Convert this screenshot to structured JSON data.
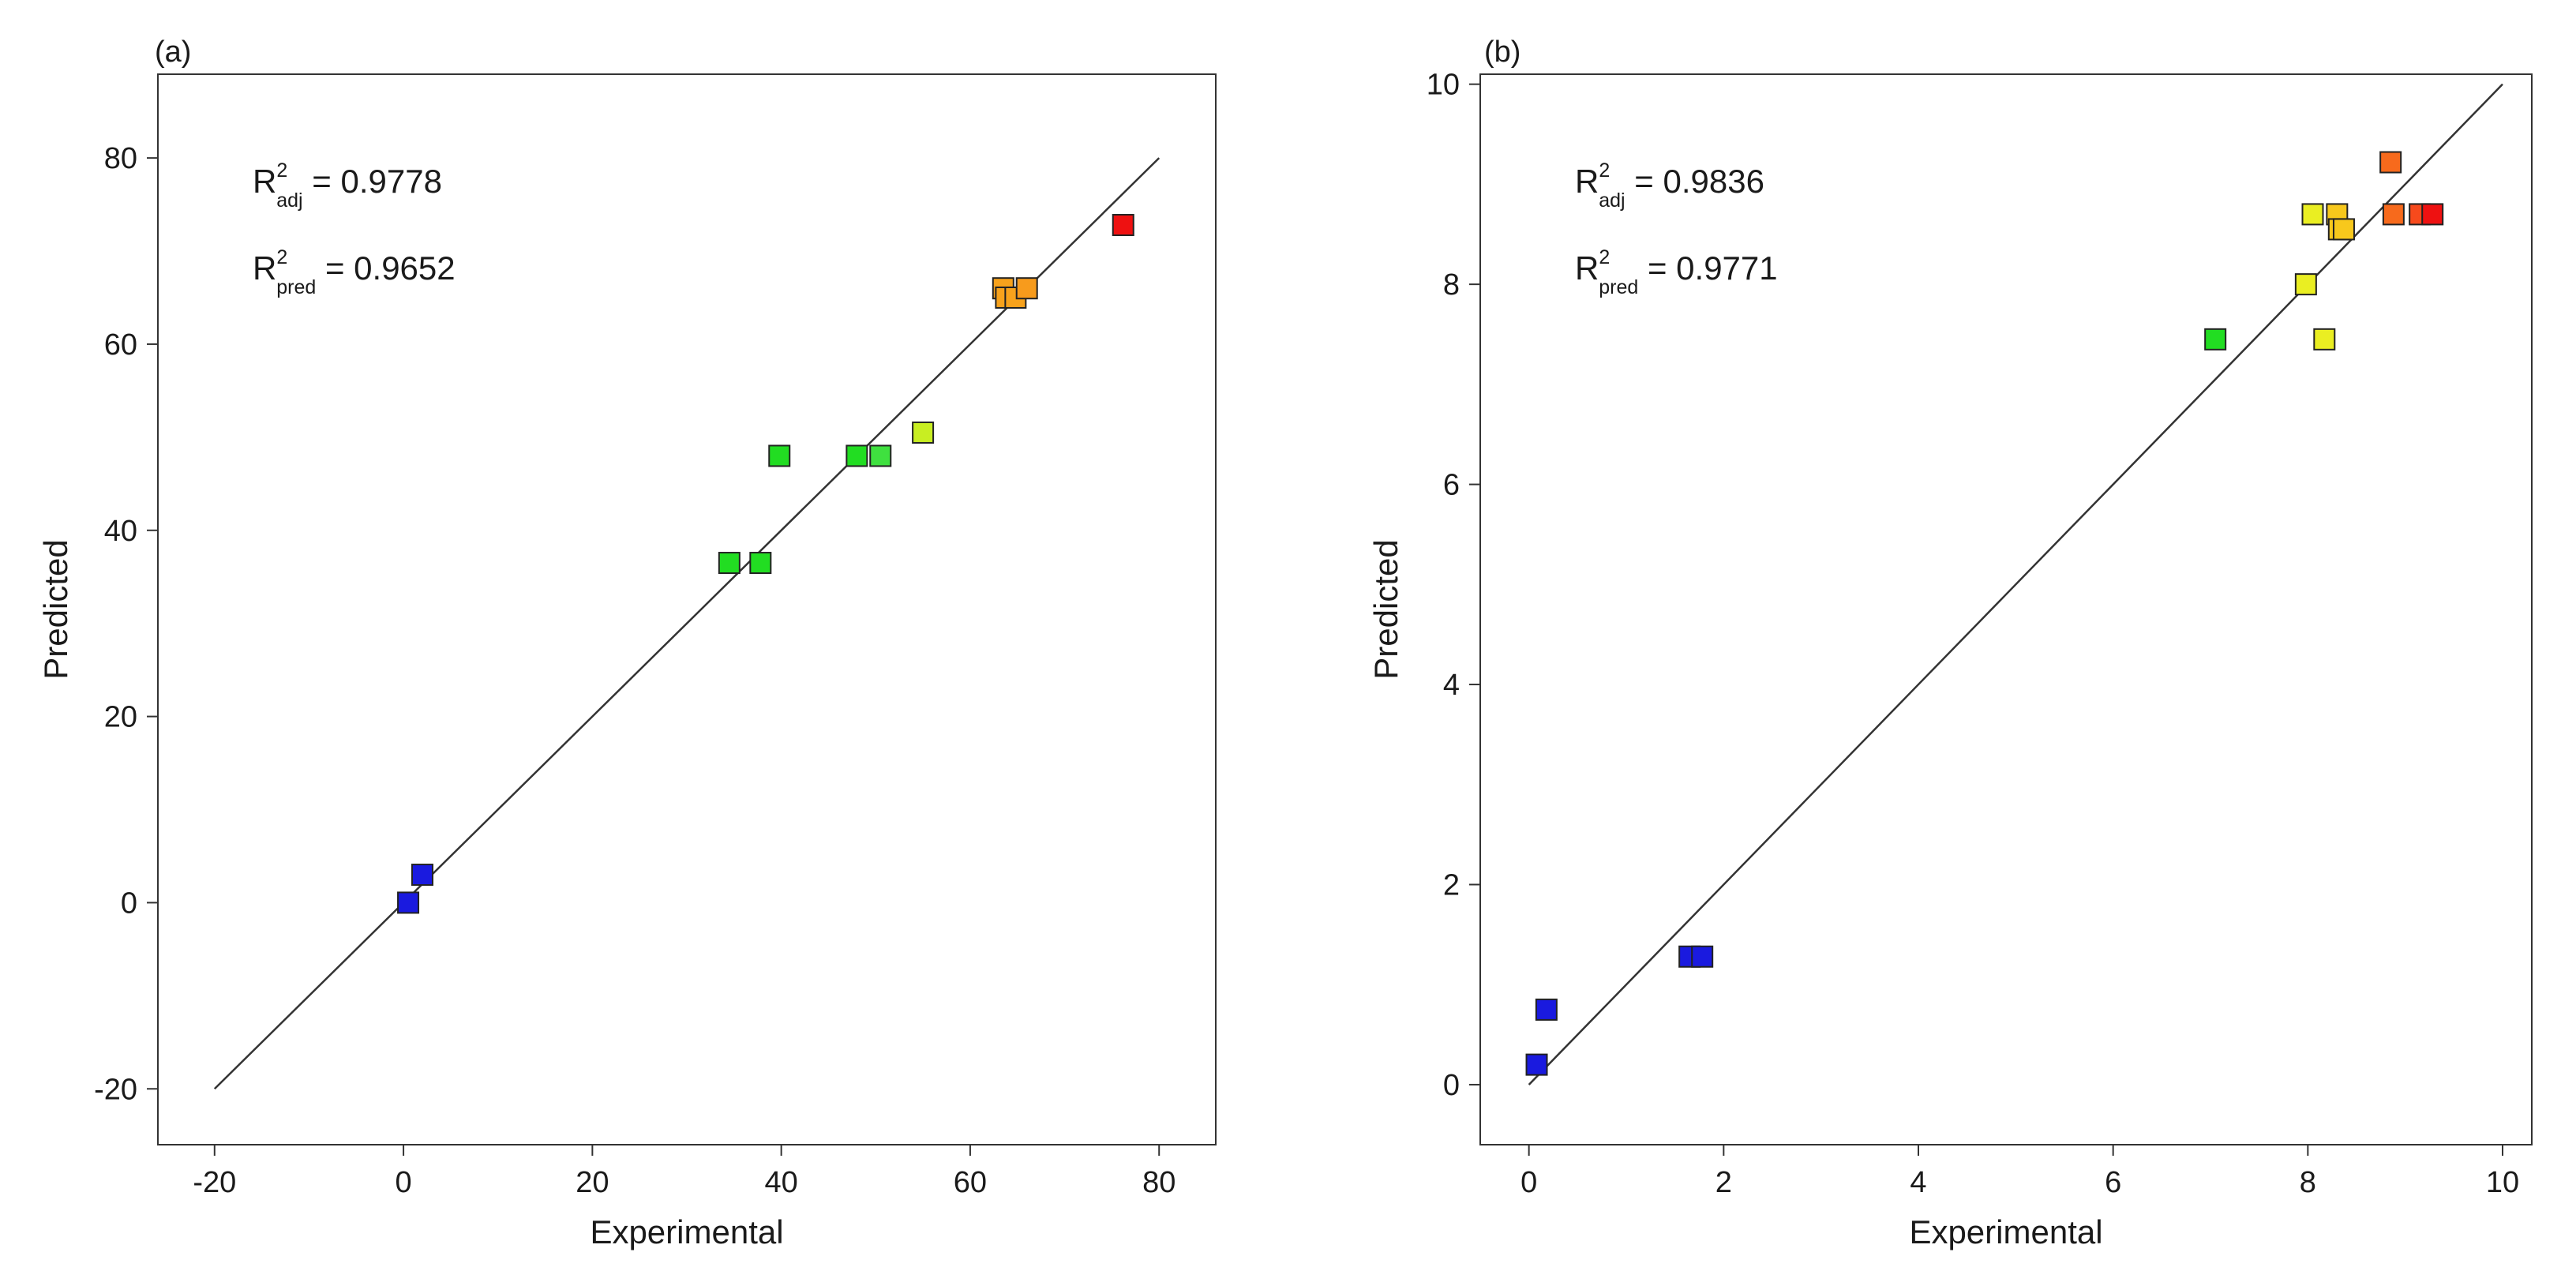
{
  "chart_data": [
    {
      "type": "scatter",
      "panel_label": "(a)",
      "xlabel": "Experimental",
      "ylabel": "Predicted",
      "xlim": [
        -26,
        86
      ],
      "ylim": [
        -26,
        89
      ],
      "xticks": [
        -20,
        0,
        20,
        40,
        60,
        80
      ],
      "yticks": [
        -20,
        0,
        20,
        40,
        60,
        80
      ],
      "grid": false,
      "diagonal_line": [
        [
          -20,
          -20
        ],
        [
          80,
          80
        ]
      ],
      "annotations": [
        {
          "base": "R",
          "sup": "2",
          "sub": "adj",
          "value": " = 0.9778"
        },
        {
          "base": "R",
          "sup": "2",
          "sub": "pred",
          "value": " = 0.9652"
        }
      ],
      "points": [
        {
          "x": 0.5,
          "y": 0.0,
          "color": "#1a1adf"
        },
        {
          "x": 2.0,
          "y": 3.0,
          "color": "#1a1adf"
        },
        {
          "x": 34.5,
          "y": 36.5,
          "color": "#22dd22"
        },
        {
          "x": 37.8,
          "y": 36.5,
          "color": "#22dd22"
        },
        {
          "x": 39.8,
          "y": 48.0,
          "color": "#22dd22"
        },
        {
          "x": 48.0,
          "y": 48.0,
          "color": "#22dd22"
        },
        {
          "x": 50.5,
          "y": 48.0,
          "color": "#3fe03f"
        },
        {
          "x": 55.0,
          "y": 50.5,
          "color": "#c8ee22"
        },
        {
          "x": 63.5,
          "y": 66.0,
          "color": "#f7a21c"
        },
        {
          "x": 63.8,
          "y": 65.0,
          "color": "#f7a21c"
        },
        {
          "x": 64.8,
          "y": 65.0,
          "color": "#f7a21c"
        },
        {
          "x": 66.0,
          "y": 66.0,
          "color": "#f79b1c"
        },
        {
          "x": 76.2,
          "y": 72.8,
          "color": "#ee1111"
        }
      ]
    },
    {
      "type": "scatter",
      "panel_label": "(b)",
      "xlabel": "Experimental",
      "ylabel": "Predicted",
      "xlim": [
        -0.5,
        10.3
      ],
      "ylim": [
        -0.6,
        10.1
      ],
      "xticks": [
        0,
        2,
        4,
        6,
        8,
        10
      ],
      "yticks": [
        0,
        2,
        4,
        6,
        8,
        10
      ],
      "grid": false,
      "diagonal_line": [
        [
          0,
          0
        ],
        [
          10,
          10
        ]
      ],
      "annotations": [
        {
          "base": "R",
          "sup": "2",
          "sub": "adj",
          "value": " = 0.9836"
        },
        {
          "base": "R",
          "sup": "2",
          "sub": "pred",
          "value": " = 0.9771"
        }
      ],
      "points": [
        {
          "x": 0.08,
          "y": 0.2,
          "color": "#1a1adf"
        },
        {
          "x": 0.18,
          "y": 0.75,
          "color": "#1a1adf"
        },
        {
          "x": 1.65,
          "y": 1.28,
          "color": "#1a1adf"
        },
        {
          "x": 1.78,
          "y": 1.28,
          "color": "#1a1adf"
        },
        {
          "x": 7.05,
          "y": 7.45,
          "color": "#22dd22"
        },
        {
          "x": 7.98,
          "y": 8.0,
          "color": "#eaee22"
        },
        {
          "x": 8.05,
          "y": 8.7,
          "color": "#eaee22"
        },
        {
          "x": 8.17,
          "y": 7.45,
          "color": "#eaee22"
        },
        {
          "x": 8.3,
          "y": 8.7,
          "color": "#f7c81c"
        },
        {
          "x": 8.32,
          "y": 8.55,
          "color": "#f7c81c"
        },
        {
          "x": 8.37,
          "y": 8.55,
          "color": "#f7c81c"
        },
        {
          "x": 8.85,
          "y": 9.22,
          "color": "#f76a1c"
        },
        {
          "x": 8.88,
          "y": 8.7,
          "color": "#f76a1c"
        },
        {
          "x": 9.15,
          "y": 8.7,
          "color": "#f74a1c"
        },
        {
          "x": 9.28,
          "y": 8.7,
          "color": "#ee1111"
        }
      ]
    }
  ]
}
